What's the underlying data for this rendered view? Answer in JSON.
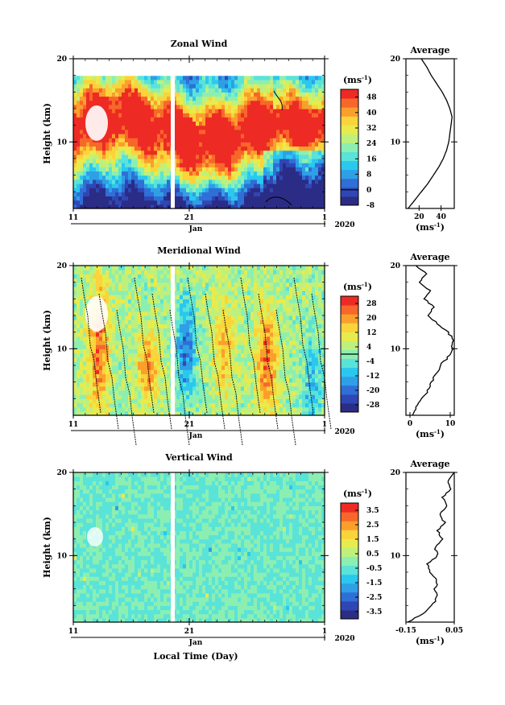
{
  "figure": {
    "month_label": "Jan",
    "year_label": "2020",
    "time_axis_label": "Local Time (Day)",
    "height_axis_label": "Height (km)",
    "unit_label": "(ms",
    "unit_exponent": "-1",
    "unit_close": ")"
  },
  "colormap": [
    "#2b2c85",
    "#2f47b5",
    "#2f6fd6",
    "#2f9fe6",
    "#2ac8ef",
    "#5ae3d8",
    "#8cefb2",
    "#bff07c",
    "#e8eb4c",
    "#fbd33a",
    "#fb9f2c",
    "#f7672a",
    "#ee2a24"
  ],
  "chart_data": [
    {
      "type": "heatmap",
      "title": "Zonal Wind",
      "ylabel": "Height (km)",
      "xlabel": "",
      "x_ticks": [
        "11",
        "21",
        "1"
      ],
      "y_ticks": [
        "20",
        "10"
      ],
      "ylim": [
        2,
        20
      ],
      "colorbar_ticks": [
        "48",
        "40",
        "32",
        "24",
        "16",
        "8",
        "0",
        "-8"
      ],
      "colorbar_range": [
        -8,
        52
      ],
      "zero_contour": true,
      "profile": {
        "title": "Average",
        "xlabel": "(ms-1)",
        "x_ticks": [
          "20",
          "40"
        ],
        "xlim": [
          8,
          52
        ],
        "y_ticks": [
          "20",
          "10"
        ],
        "heights": [
          2,
          3,
          4,
          5,
          6,
          7,
          8,
          9,
          10,
          11,
          12,
          13,
          14,
          15,
          16,
          17,
          18,
          19,
          20
        ],
        "values": [
          10,
          16,
          22,
          28,
          33,
          38,
          42,
          45,
          47,
          48,
          49,
          50,
          48,
          45,
          41,
          36,
          31,
          27,
          22
        ]
      }
    },
    {
      "type": "heatmap",
      "title": "Meridional Wind",
      "ylabel": "Height (km)",
      "xlabel": "",
      "x_ticks": [
        "11",
        "21",
        "1"
      ],
      "y_ticks": [
        "20",
        "10"
      ],
      "ylim": [
        2,
        20
      ],
      "colorbar_ticks": [
        "28",
        "20",
        "12",
        "4",
        "-4",
        "-12",
        "-20",
        "-28"
      ],
      "colorbar_range": [
        -32,
        32
      ],
      "zero_contour": true,
      "profile": {
        "title": "Average",
        "xlabel": "(ms-1)",
        "x_ticks": [
          "0",
          "10"
        ],
        "xlim": [
          -1,
          11
        ],
        "y_ticks": [
          "20",
          "10"
        ],
        "heights": [
          2,
          3,
          4,
          5,
          6,
          7,
          8,
          9,
          10,
          11,
          12,
          13,
          14,
          15,
          16,
          17,
          18,
          19,
          20
        ],
        "values": [
          0.5,
          1.5,
          3,
          4.5,
          5.5,
          6.5,
          7.5,
          9.5,
          10.5,
          10.8,
          9.5,
          7,
          4.5,
          6,
          3.5,
          5,
          2.5,
          4,
          1.5
        ]
      }
    },
    {
      "type": "heatmap",
      "title": "Vertical Wind",
      "ylabel": "Height (km)",
      "xlabel": "Local Time (Day)",
      "x_ticks": [
        "11",
        "21",
        "1"
      ],
      "y_ticks": [
        "20",
        "10"
      ],
      "ylim": [
        2,
        20
      ],
      "colorbar_ticks": [
        "3.5",
        "2.5",
        "1.5",
        "0.5",
        "-0.5",
        "-1.5",
        "-2.5",
        "-3.5"
      ],
      "colorbar_range": [
        -4,
        4
      ],
      "zero_contour": false,
      "profile": {
        "title": "Average",
        "xlabel": "(ms-1)",
        "x_ticks": [
          "-0.15",
          "0.05"
        ],
        "xlim": [
          -0.15,
          0.05
        ],
        "y_ticks": [
          "20",
          "10"
        ],
        "heights": [
          2,
          3,
          4,
          5,
          6,
          7,
          8,
          9,
          10,
          11,
          12,
          13,
          14,
          15,
          16,
          17,
          18,
          19,
          20
        ],
        "values": [
          -0.14,
          -0.08,
          -0.04,
          -0.02,
          -0.03,
          -0.02,
          -0.05,
          -0.06,
          -0.02,
          -0.03,
          0.0,
          -0.02,
          0.01,
          -0.01,
          0.02,
          0.0,
          0.04,
          0.02,
          0.05
        ]
      }
    }
  ]
}
